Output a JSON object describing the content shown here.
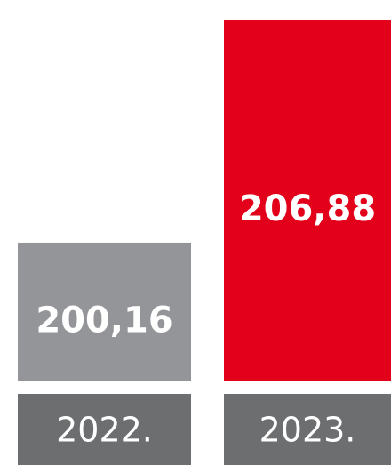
{
  "chart_data": {
    "type": "bar",
    "categories": [
      "2022.",
      "2023."
    ],
    "values": [
      200.16,
      206.88
    ],
    "value_labels": [
      "200,16",
      "206,88"
    ],
    "colors": [
      "#939598",
      "#e2001a"
    ],
    "category_color": "#6d6e70",
    "ylim": [
      196,
      207
    ]
  }
}
